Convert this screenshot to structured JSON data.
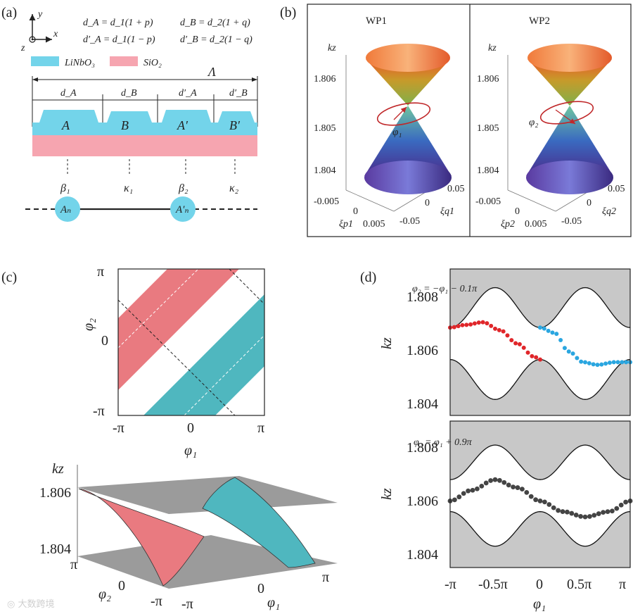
{
  "colors": {
    "linbo3": "#73d4ea",
    "sio2": "#f6a5b0",
    "red_band": "#e97a80",
    "teal_band": "#4fb7bf",
    "gray_bg": "#c8c8c8",
    "red_dot": "#e0262a",
    "blue_dot": "#2aa6e0",
    "dark_dot": "#444444"
  },
  "panel_a": {
    "label": "(a)",
    "axis_y": "y",
    "axis_x": "x",
    "axis_z": "z",
    "eq1": "d_A = d_1(1 + p)",
    "eq2": "d_B = d_2(1 + q)",
    "eq3": "d′_A = d_1(1 − p)",
    "eq4": "d′_B = d_2(1 − q)",
    "legend_linbo3": "LiNbO₃",
    "legend_sio2": "SiO₂",
    "period": "Λ",
    "seg_labels": [
      "d_A",
      "d_B",
      "d′_A",
      "d′_B"
    ],
    "wg_labels": [
      "A",
      "B",
      "A′",
      "B′"
    ],
    "coupling_labels": [
      "β₁",
      "κ₁",
      "β₂",
      "κ₂"
    ],
    "node_labels": [
      "Aₙ",
      "A′ₙ"
    ]
  },
  "panel_b": {
    "label": "(b)",
    "titles": [
      "WP1",
      "WP2"
    ],
    "kz_label": "kz",
    "z_ticks": [
      "1.806",
      "1.805",
      "1.804"
    ],
    "xi_p_ticks": [
      "-0.005",
      "0",
      "0.005"
    ],
    "xi_q_ticks": [
      "0.05",
      "0",
      "-0.05"
    ],
    "xi_p_labels": [
      "ξp1",
      "ξp2"
    ],
    "xi_q_labels": [
      "ξq1",
      "ξq2"
    ],
    "phi_labels": [
      "φ₁",
      "φ₂"
    ]
  },
  "panel_c": {
    "label": "(c)",
    "xlabel": "φ₁",
    "ylabel": "φ₂",
    "x_ticks": [
      "-π",
      "0",
      "π"
    ],
    "y_ticks": [
      "π",
      "0",
      "-π"
    ],
    "surface_kz_label": "kz",
    "surface_z_ticks": [
      "1.806",
      "1.804"
    ],
    "surface_phi2_ticks": [
      "π",
      "0",
      "-π"
    ],
    "surface_phi1_ticks": [
      "-π",
      "0",
      "π"
    ],
    "surface_phi2_label": "φ₂",
    "surface_phi1_label": "φ₁"
  },
  "panel_d": {
    "label": "(d)",
    "ylabel": "kz",
    "xlabel": "φ₁",
    "x_ticks": [
      "-π",
      "-0.5π",
      "0",
      "0.5π",
      "π"
    ],
    "y_ticks": [
      "1.808",
      "1.806",
      "1.804"
    ],
    "top_title": "φ₂ = −φ₁ − 0.1π",
    "bottom_title": "φ₂ = φ₁ + 0.9π"
  },
  "chart_data": [
    {
      "type": "line",
      "title": "φ₂ = −φ₁ − 0.1π",
      "xlabel": "φ₁",
      "ylabel": "kz",
      "xlim": [
        -3.1416,
        3.1416
      ],
      "ylim": [
        1.8035,
        1.809
      ],
      "series": [
        {
          "name": "upper band edge",
          "x": [
            -3.1416,
            -1.5708,
            0,
            1.5708,
            3.1416
          ],
          "y": [
            1.8068,
            1.8083,
            1.8068,
            1.8083,
            1.8068
          ]
        },
        {
          "name": "lower band edge",
          "x": [
            -3.1416,
            -1.5708,
            0,
            1.5708,
            3.1416
          ],
          "y": [
            1.8056,
            1.8041,
            1.8056,
            1.8041,
            1.8056
          ]
        },
        {
          "name": "edge state (red)",
          "x": [
            -3.1416,
            -2.6,
            -2.0,
            -1.4,
            -0.8,
            -0.2,
            0
          ],
          "y": [
            1.8068,
            1.8069,
            1.807,
            1.8067,
            1.8062,
            1.8057,
            1.8056
          ]
        },
        {
          "name": "edge state (blue)",
          "x": [
            0,
            0.5,
            1.0,
            1.5,
            2.0,
            2.6,
            3.1416
          ],
          "y": [
            1.8068,
            1.8066,
            1.8059,
            1.8055,
            1.8054,
            1.8055,
            1.8055
          ]
        }
      ]
    },
    {
      "type": "line",
      "title": "φ₂ = φ₁ + 0.9π",
      "xlabel": "φ₁",
      "ylabel": "kz",
      "xlim": [
        -3.1416,
        3.1416
      ],
      "ylim": [
        1.8035,
        1.809
      ],
      "series": [
        {
          "name": "upper band edge",
          "x": [
            -3.1416,
            -1.5708,
            0,
            1.5708,
            3.1416
          ],
          "y": [
            1.8068,
            1.8081,
            1.8068,
            1.8081,
            1.8068
          ]
        },
        {
          "name": "lower band edge",
          "x": [
            -3.1416,
            -1.5708,
            0,
            1.5708,
            3.1416
          ],
          "y": [
            1.8056,
            1.8043,
            1.8056,
            1.8043,
            1.8056
          ]
        },
        {
          "name": "edge state (dark)",
          "x": [
            -3.1416,
            -2.4,
            -1.5708,
            -0.8,
            0,
            0.8,
            1.5708,
            2.4,
            3.1416
          ],
          "y": [
            1.806,
            1.8064,
            1.8068,
            1.8065,
            1.806,
            1.8056,
            1.8054,
            1.8056,
            1.806
          ]
        }
      ]
    }
  ]
}
